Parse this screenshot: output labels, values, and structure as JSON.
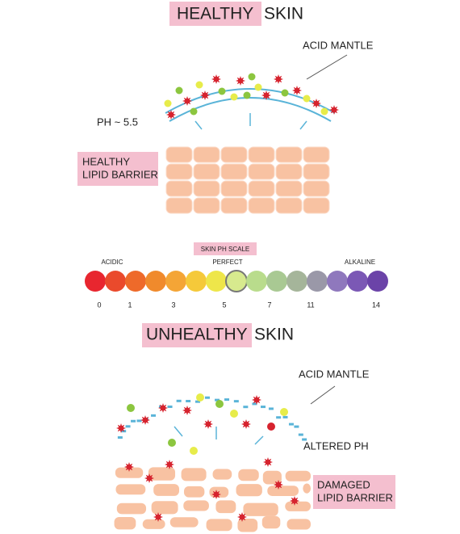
{
  "healthy": {
    "title_highlight": "HEALTHY",
    "title_rest": "SKIN",
    "acid_mantle": "ACID MANTLE",
    "ph": "PH ~ 5.5",
    "barrier": [
      "HEALTHY",
      "LIPID BARRIER"
    ]
  },
  "scale": {
    "title": "SKIN PH SCALE",
    "left": "ACIDIC",
    "middle": "PERFECT",
    "right": "ALKALINE",
    "ticks": [
      "0",
      "1",
      "3",
      "5",
      "7",
      "11",
      "14"
    ]
  },
  "unhealthy": {
    "title_highlight": "UNHEALTHY",
    "title_rest": "SKIN",
    "acid_mantle": "ACID MANTLE",
    "ph": "ALTERED PH",
    "barrier": [
      "DAMAGED",
      "LIPID BARRIER"
    ]
  }
}
